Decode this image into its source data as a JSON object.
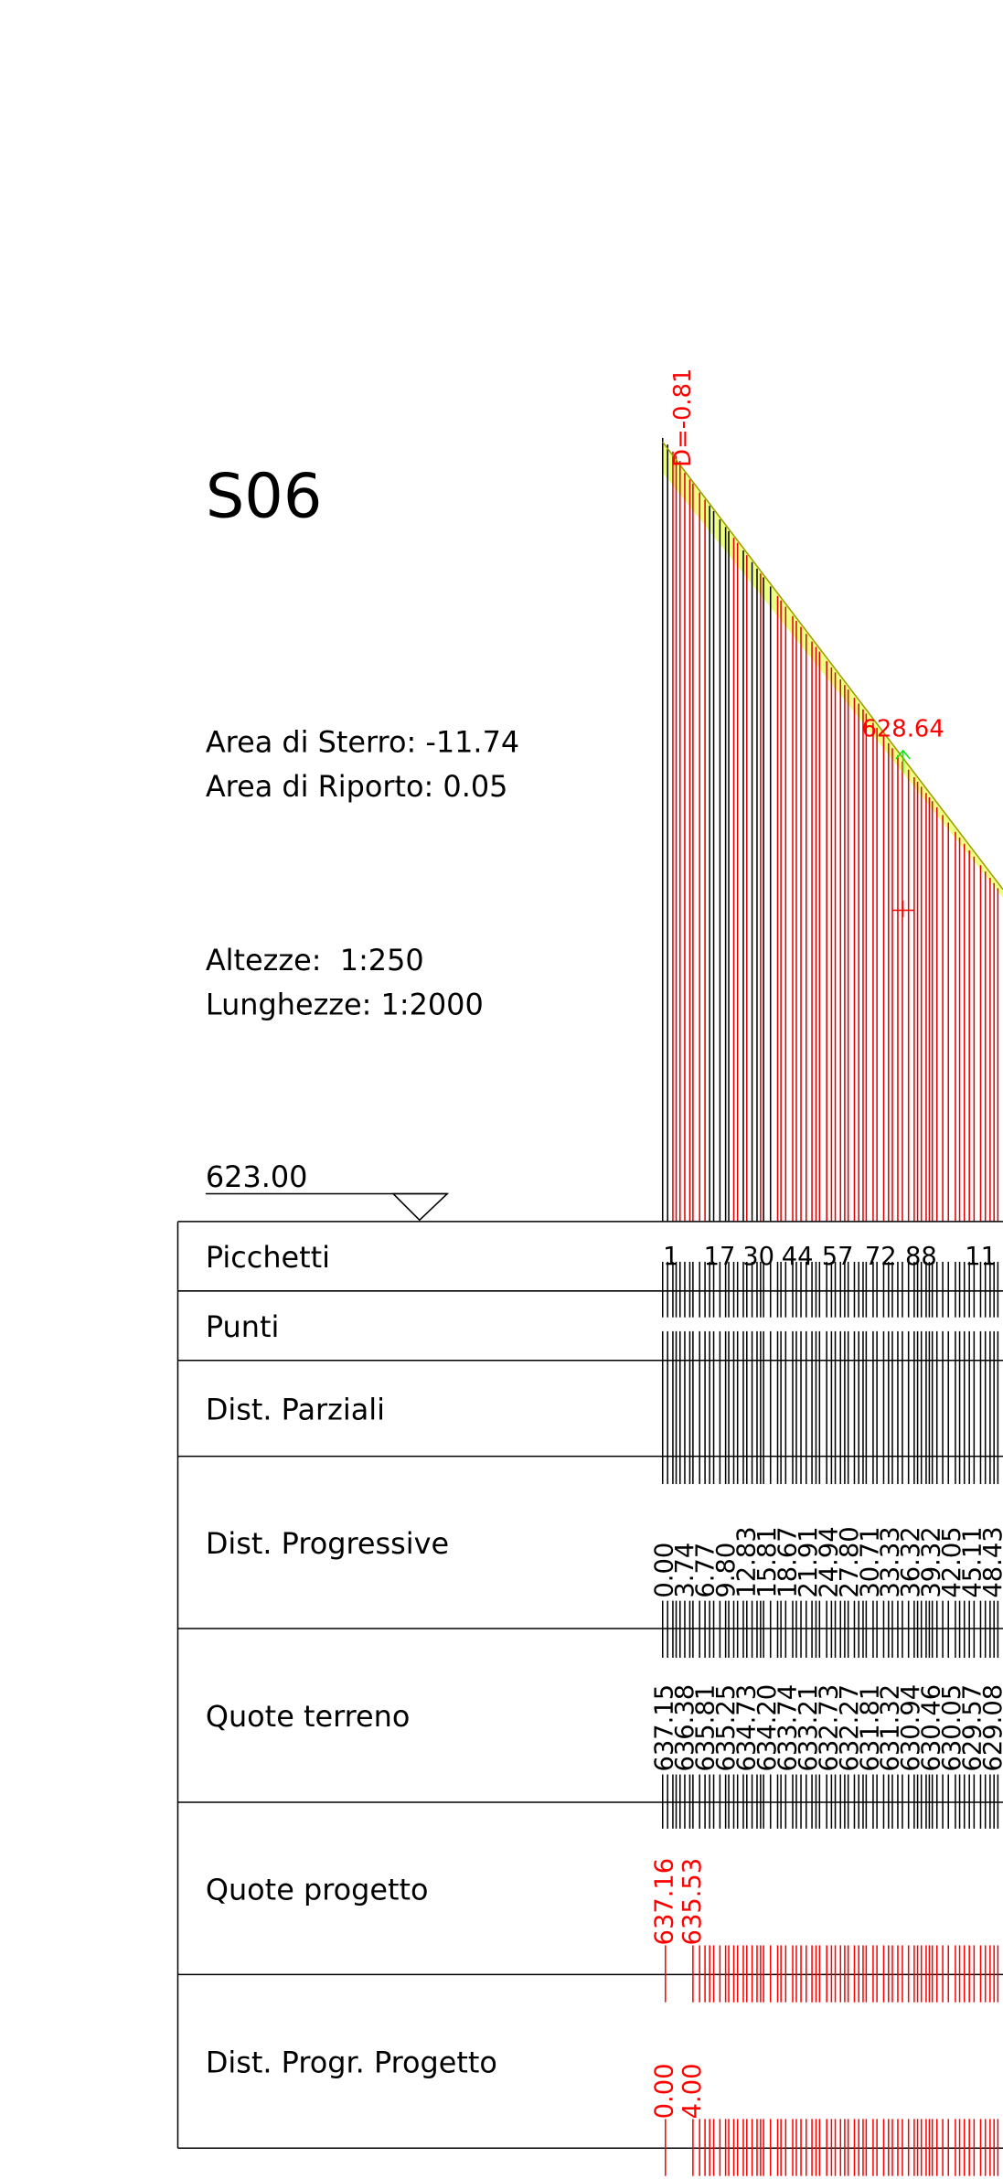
{
  "header": {
    "title": "S06",
    "area_sterro": "Area di Sterro: -11.74",
    "area_riporto": "Area di Riporto: 0.05",
    "altezze": "Altezze:  1:250",
    "lunghezze": "Lunghezze: 1:2000",
    "datum": "623.00"
  },
  "profile": {
    "delta_label": "D=-0.81",
    "elevation_label": "628.64"
  },
  "table": {
    "rows": [
      "Picchetti",
      "Punti",
      "Dist. Parziali",
      "Dist. Progressive",
      "Quote terreno",
      "Quote progetto",
      "Dist. Progr. Progetto"
    ],
    "picchetti": [
      "1",
      "17",
      "30",
      "44",
      "57",
      "72",
      "88",
      "11"
    ],
    "dist_progressive": [
      "0.00",
      "3.74",
      "6.77",
      "9.80",
      "12.83",
      "15.81",
      "18.67",
      "21.91",
      "24.94",
      "27.80",
      "30.71",
      "33.33",
      "36.32",
      "39.32",
      "42.05",
      "45.11",
      "48.43"
    ],
    "quote_terreno": [
      "637.15",
      "636.38",
      "635.81",
      "635.25",
      "634.73",
      "634.20",
      "633.74",
      "633.21",
      "632.73",
      "632.27",
      "631.81",
      "631.32",
      "630.94",
      "630.46",
      "630.05",
      "629.57",
      "629.08"
    ],
    "quote_progetto": [
      "637.16",
      "635.53"
    ],
    "dist_progr_progetto": [
      "0.00",
      "4.00"
    ]
  }
}
